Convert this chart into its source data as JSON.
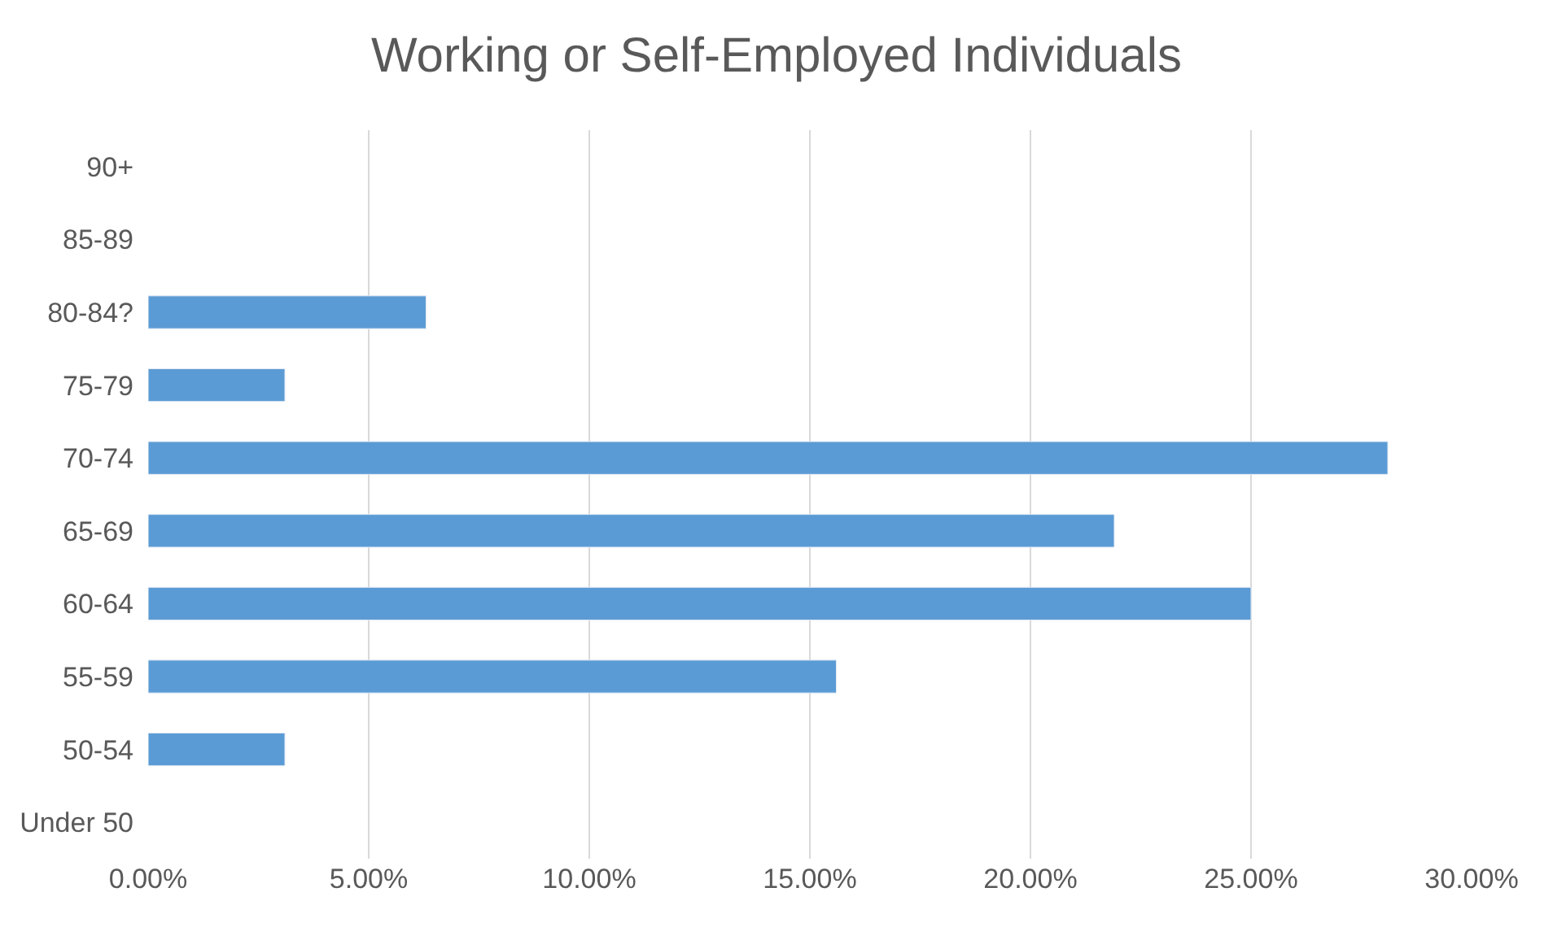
{
  "chart_data": {
    "type": "bar",
    "orientation": "horizontal",
    "title": "Working or Self-Employed Individuals",
    "categories": [
      "90+",
      "85-89",
      "80-84?",
      "75-79",
      "70-74",
      "65-69",
      "60-64",
      "55-59",
      "50-54",
      "Under 50"
    ],
    "values": [
      null,
      null,
      6.3,
      3.1,
      28.1,
      21.9,
      25,
      15.6,
      3.1,
      null
    ],
    "color": "#5b9bd5",
    "xlim": [
      0,
      30
    ],
    "xticks": [
      {
        "value": 0,
        "label": "0.00%"
      },
      {
        "value": 5,
        "label": "5.00%"
      },
      {
        "value": 10,
        "label": "10.00%"
      },
      {
        "value": 15,
        "label": "15.00%"
      },
      {
        "value": 20,
        "label": "20.00%"
      },
      {
        "value": 25,
        "label": "25.00%"
      },
      {
        "value": 30,
        "label": "30.00%"
      }
    ],
    "grid": "x"
  }
}
